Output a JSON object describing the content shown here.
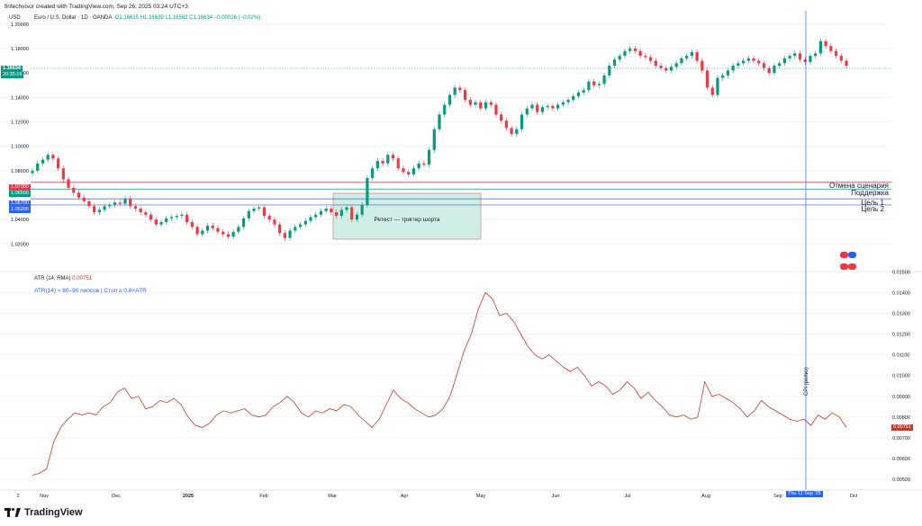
{
  "header": {
    "credit": "fintechvisor created with TradingView.com, Sep 26, 2025 03:24 UTC+3",
    "currency": "USD",
    "symbol": "Euro / U.S. Dollar · 1D · OANDA",
    "ohlc": "O1.16615 H1.16689 L1.16582 C1.16634 −0.00026 (−0.02%)"
  },
  "chart_data": [
    {
      "type": "candlestick",
      "symbol": "EURUSD",
      "timeframe": "1D",
      "ylim": [
        1.01,
        1.205
      ],
      "y_ticks": [
        "1.20000",
        "1.18000",
        "1.16000",
        "1.14000",
        "1.12000",
        "1.10000",
        "1.08000",
        "1.06000",
        "1.04000",
        "1.02000"
      ],
      "last_price": "1.16634",
      "last_price_timer": "20:35:16",
      "close_series": [
        1.08,
        1.086,
        1.089,
        1.093,
        1.09,
        1.082,
        1.073,
        1.066,
        1.062,
        1.058,
        1.055,
        1.051,
        1.046,
        1.048,
        1.051,
        1.052,
        1.054,
        1.053,
        1.057,
        1.051,
        1.049,
        1.046,
        1.044,
        1.04,
        1.036,
        1.038,
        1.041,
        1.042,
        1.043,
        1.044,
        1.038,
        1.034,
        1.028,
        1.031,
        1.035,
        1.033,
        1.03,
        1.028,
        1.026,
        1.03,
        1.034,
        1.041,
        1.047,
        1.049,
        1.05,
        1.043,
        1.04,
        1.036,
        1.029,
        1.025,
        1.031,
        1.034,
        1.036,
        1.039,
        1.042,
        1.044,
        1.047,
        1.049,
        1.046,
        1.043,
        1.048,
        1.05,
        1.04,
        1.044,
        1.052,
        1.074,
        1.082,
        1.088,
        1.086,
        1.093,
        1.09,
        1.082,
        1.079,
        1.077,
        1.082,
        1.086,
        1.085,
        1.097,
        1.114,
        1.126,
        1.134,
        1.142,
        1.148,
        1.146,
        1.138,
        1.134,
        1.136,
        1.131,
        1.136,
        1.134,
        1.126,
        1.121,
        1.115,
        1.11,
        1.114,
        1.126,
        1.131,
        1.134,
        1.128,
        1.132,
        1.133,
        1.131,
        1.134,
        1.136,
        1.138,
        1.141,
        1.144,
        1.146,
        1.153,
        1.15,
        1.151,
        1.158,
        1.166,
        1.171,
        1.174,
        1.178,
        1.18,
        1.178,
        1.174,
        1.173,
        1.17,
        1.166,
        1.164,
        1.162,
        1.165,
        1.168,
        1.172,
        1.174,
        1.177,
        1.17,
        1.162,
        1.148,
        1.142,
        1.156,
        1.158,
        1.162,
        1.166,
        1.168,
        1.17,
        1.172,
        1.17,
        1.168,
        1.164,
        1.16,
        1.166,
        1.168,
        1.172,
        1.174,
        1.176,
        1.171,
        1.169,
        1.174,
        1.176,
        1.186,
        1.182,
        1.178,
        1.174,
        1.17,
        1.166
      ]
    },
    {
      "type": "line",
      "title": "ATR (14, RMA)",
      "value": "0.00751",
      "ylim": [
        0.0047,
        0.0151
      ],
      "y_ticks": [
        "0.01500",
        "0.01400",
        "0.01300",
        "0.01200",
        "0.01100",
        "0.01000",
        "0.00900",
        "0.00800",
        "0.00700",
        "0.00600",
        "0.00500"
      ],
      "values": [
        0.0052,
        0.0053,
        0.0055,
        0.0068,
        0.0075,
        0.0079,
        0.0082,
        0.0081,
        0.0082,
        0.0081,
        0.0085,
        0.0087,
        0.0092,
        0.0094,
        0.0089,
        0.009,
        0.0084,
        0.0085,
        0.0088,
        0.0087,
        0.0089,
        0.0086,
        0.008,
        0.0076,
        0.0075,
        0.0077,
        0.0081,
        0.0083,
        0.0082,
        0.0083,
        0.0084,
        0.0081,
        0.008,
        0.0081,
        0.0085,
        0.0087,
        0.009,
        0.0087,
        0.0082,
        0.008,
        0.0083,
        0.0082,
        0.0084,
        0.0083,
        0.0086,
        0.0085,
        0.0081,
        0.0078,
        0.0075,
        0.0079,
        0.0086,
        0.0093,
        0.0089,
        0.0087,
        0.0084,
        0.0082,
        0.008,
        0.0081,
        0.0084,
        0.009,
        0.0101,
        0.0112,
        0.012,
        0.0132,
        0.014,
        0.0137,
        0.0129,
        0.013,
        0.0126,
        0.012,
        0.0114,
        0.011,
        0.0108,
        0.011,
        0.0107,
        0.0104,
        0.0102,
        0.0104,
        0.01,
        0.0095,
        0.0097,
        0.0095,
        0.0091,
        0.0093,
        0.0097,
        0.0094,
        0.0089,
        0.0092,
        0.0088,
        0.0085,
        0.0081,
        0.008,
        0.0081,
        0.0079,
        0.008,
        0.0097,
        0.009,
        0.0091,
        0.0089,
        0.0087,
        0.0084,
        0.008,
        0.0083,
        0.0088,
        0.0085,
        0.0083,
        0.0081,
        0.0079,
        0.0078,
        0.0079,
        0.0076,
        0.0081,
        0.0079,
        0.0082,
        0.008,
        0.0075
      ]
    }
  ],
  "x_axis": {
    "labels": [
      "2",
      "Nov",
      "Dec",
      "2025",
      "Feb",
      "Mar",
      "Apr",
      "May",
      "Jun",
      "Jul",
      "Aug",
      "Sep",
      "Thu 11 Sep '25",
      "Oct"
    ]
  },
  "levels": [
    {
      "price": "1.07050",
      "label": "Отмена сценария",
      "color": "#f23645"
    },
    {
      "price": "1.06500",
      "label": "Поддержка",
      "color": "#089981"
    },
    {
      "price": "1.05700",
      "label": "Цель 1",
      "color": "#2962ff"
    },
    {
      "price": "1.05200",
      "label": "Цель 2",
      "color": "#2962ff"
    }
  ],
  "annotations": {
    "retest_box": "Ретест — триггер шорта",
    "atr_note": "ATR(14) ≈ 80–90 пипсов | Стоп ≥ 0.8×ATR",
    "event_label": "CPI (релиз)"
  },
  "colors": {
    "up": "#089981",
    "down": "#f23645",
    "atr": "#c0392b",
    "event_line": "#2962ff",
    "retest_fill": "#d1eee6"
  },
  "branding": {
    "logo": "TradingView"
  }
}
